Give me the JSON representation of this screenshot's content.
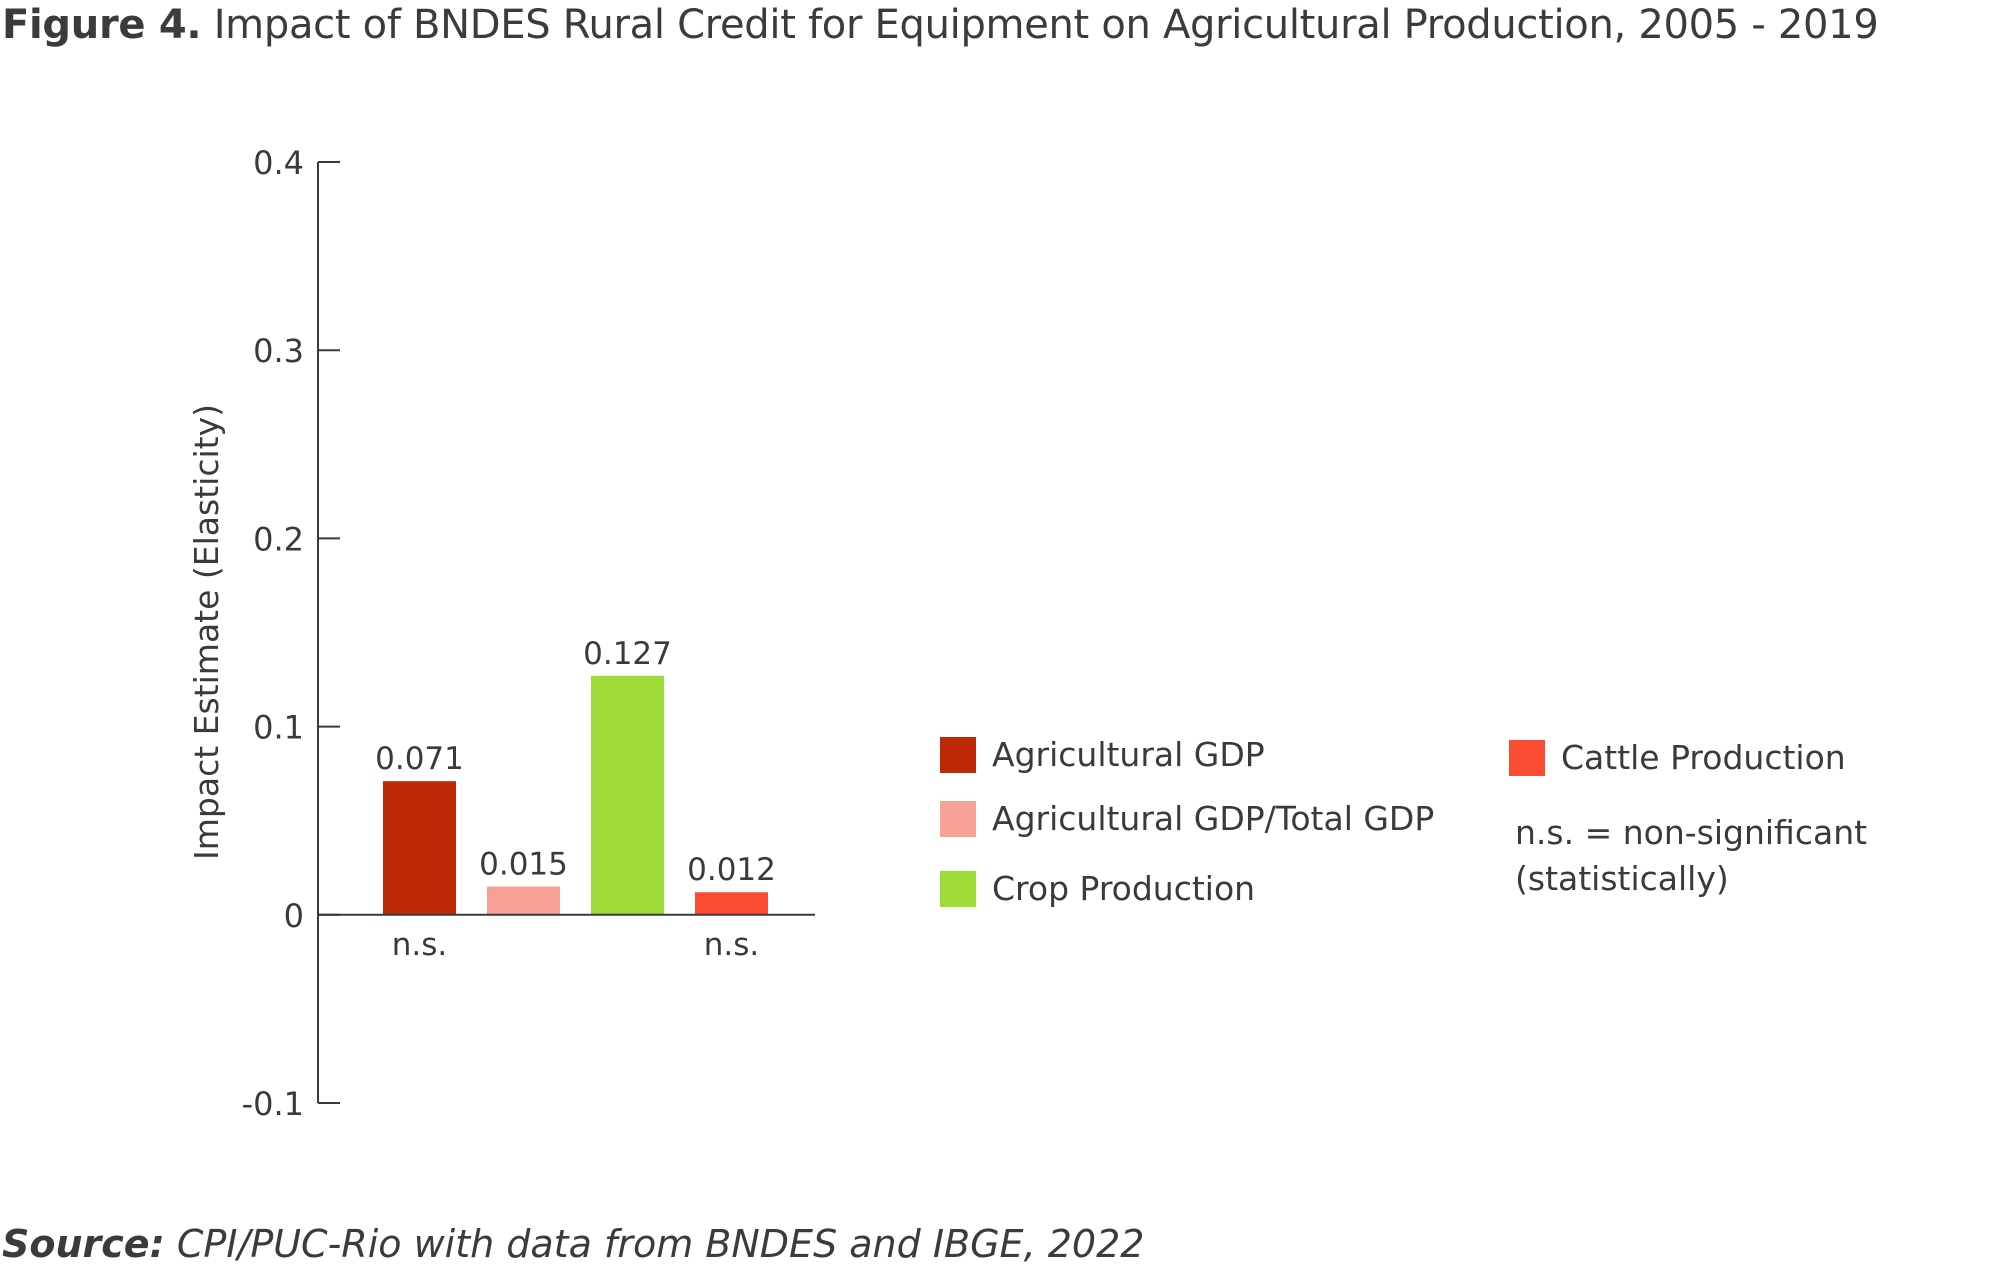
{
  "header": {
    "figure_label": "Figure 4.",
    "title": "Impact of BNDES Rural Credit for Equipment on Agricultural Production, 2005 - 2019"
  },
  "chart_data": {
    "type": "bar",
    "title": "Impact of BNDES Rural Credit for Equipment on Agricultural Production, 2005 - 2019",
    "ylabel": "Impact Estimate (Elasticity)",
    "xlabel": "",
    "ylim": [
      -0.1,
      0.4
    ],
    "yticks": [
      {
        "value": 0.4,
        "label": "0.4"
      },
      {
        "value": 0.3,
        "label": "0.3"
      },
      {
        "value": 0.2,
        "label": "0.2"
      },
      {
        "value": 0.1,
        "label": "0.1"
      },
      {
        "value": 0,
        "label": "0"
      },
      {
        "value": -0.1,
        "label": "-0.1"
      }
    ],
    "grid": false,
    "legend_position": "right",
    "bars": [
      {
        "name": "Agricultural GDP",
        "value": 0.071,
        "label": "0.071",
        "color": "#bd2807",
        "note": "n.s."
      },
      {
        "name": "Agricultural GDP/Total GDP",
        "value": 0.015,
        "label": "0.015",
        "color": "#f8a296",
        "note": ""
      },
      {
        "name": "Crop Production",
        "value": 0.127,
        "label": "0.127",
        "color": "#9edd37",
        "note": ""
      },
      {
        "name": "Cattle Production",
        "value": 0.012,
        "label": "0.012",
        "color": "#fa4b33",
        "note": "n.s."
      }
    ]
  },
  "legend": {
    "items": [
      {
        "label": "Agricultural GDP",
        "color": "#bd2807"
      },
      {
        "label": "Agricultural GDP/Total GDP",
        "color": "#f8a296"
      },
      {
        "label": "Crop Production",
        "color": "#9edd37"
      },
      {
        "label": "Cattle Production",
        "color": "#fa4b33"
      }
    ],
    "ns_note_line1": "n.s. = non-significant",
    "ns_note_line2": "(statistically)"
  },
  "footer": {
    "source_label": "Source:",
    "source_text": "CPI/PUC-Rio with data from BNDES and IBGE, 2022"
  }
}
